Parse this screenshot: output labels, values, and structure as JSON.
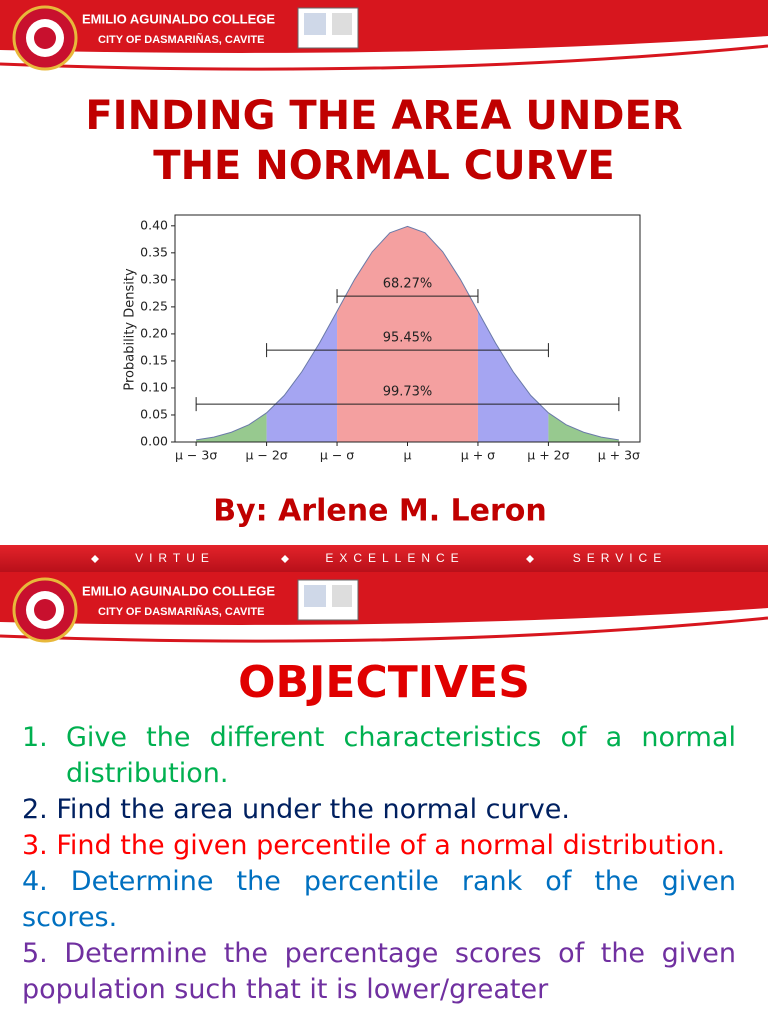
{
  "slides": [
    {
      "header": {
        "college": "EMILIO AGUINALDO COLLEGE",
        "city": "CITY OF DASMARIÑAS, CAVITE"
      },
      "title_lines": [
        "FINDING THE AREA UNDER",
        "THE NORMAL CURVE"
      ],
      "author": "By: Arlene M. Leron"
    },
    {
      "header": {
        "college": "EMILIO AGUINALDO COLLEGE",
        "city": "CITY OF DASMARIÑAS, CAVITE"
      },
      "title": "OBJECTIVES",
      "objectives": [
        {
          "number": "1.",
          "text": "Give the different characteristics of a normal distribution.",
          "color": "#00b050"
        },
        {
          "number": "2.",
          "text": "Find the area under the normal curve.",
          "color": "#002060"
        },
        {
          "number": "3.",
          "text": "Find the given percentile of a normal distribution.",
          "color": "#ff0000"
        },
        {
          "number": "4.",
          "text": "Determine the percentile rank of the given scores.",
          "color": "#0070c0"
        },
        {
          "number": "5.",
          "text": "Determine the percentage scores of the given population such that it is lower/greater",
          "color": "#7030a0"
        }
      ]
    }
  ],
  "motto": [
    "VIRTUE",
    "EXCELLENCE",
    "SERVICE"
  ],
  "chart_data": {
    "type": "area",
    "y_label": "Probability Density",
    "x": [
      -3,
      -2.75,
      -2.5,
      -2.25,
      -2,
      -1.75,
      -1.5,
      -1.25,
      -1,
      -0.75,
      -0.5,
      -0.25,
      0,
      0.25,
      0.5,
      0.75,
      1,
      1.25,
      1.5,
      1.75,
      2,
      2.25,
      2.5,
      2.75,
      3
    ],
    "values": [
      0.004,
      0.009,
      0.018,
      0.032,
      0.054,
      0.086,
      0.13,
      0.183,
      0.242,
      0.301,
      0.352,
      0.387,
      0.399,
      0.387,
      0.352,
      0.301,
      0.242,
      0.183,
      0.13,
      0.086,
      0.054,
      0.032,
      0.018,
      0.009,
      0.004
    ],
    "color": "#6a7aa8",
    "xlim": [
      -3.3,
      3.3
    ],
    "ylim": [
      0,
      0.42
    ],
    "xticks": [
      {
        "value": -3,
        "label": "μ − 3σ"
      },
      {
        "value": -2,
        "label": "μ − 2σ"
      },
      {
        "value": -1,
        "label": "μ − σ"
      },
      {
        "value": 0,
        "label": "μ"
      },
      {
        "value": 1,
        "label": "μ + σ"
      },
      {
        "value": 2,
        "label": "μ + 2σ"
      },
      {
        "value": 3,
        "label": "μ + 3σ"
      }
    ],
    "yticks": [
      {
        "value": 0,
        "label": "0.00"
      },
      {
        "value": 0.05,
        "label": "0.05"
      },
      {
        "value": 0.1,
        "label": "0.10"
      },
      {
        "value": 0.15,
        "label": "0.15"
      },
      {
        "value": 0.2,
        "label": "0.20"
      },
      {
        "value": 0.25,
        "label": "0.25"
      },
      {
        "value": 0.3,
        "label": "0.30"
      },
      {
        "value": 0.35,
        "label": "0.35"
      },
      {
        "value": 0.4,
        "label": "0.40"
      }
    ],
    "regions": [
      {
        "from": -3,
        "to": -2,
        "color": "#97c98f"
      },
      {
        "from": -2,
        "to": -1,
        "color": "#a5a5f2"
      },
      {
        "from": -1,
        "to": 1,
        "color": "#f4a0a0"
      },
      {
        "from": 1,
        "to": 2,
        "color": "#a5a5f2"
      },
      {
        "from": 2,
        "to": 3,
        "color": "#97c98f"
      }
    ],
    "intervals": [
      {
        "from": -1,
        "to": 1,
        "level": 0.27,
        "percent": 68.27,
        "label": "68.27%"
      },
      {
        "from": -2,
        "to": 2,
        "level": 0.17,
        "percent": 95.45,
        "label": "95.45%"
      },
      {
        "from": -3,
        "to": 3,
        "level": 0.07,
        "percent": 99.73,
        "label": "99.73%"
      }
    ]
  }
}
